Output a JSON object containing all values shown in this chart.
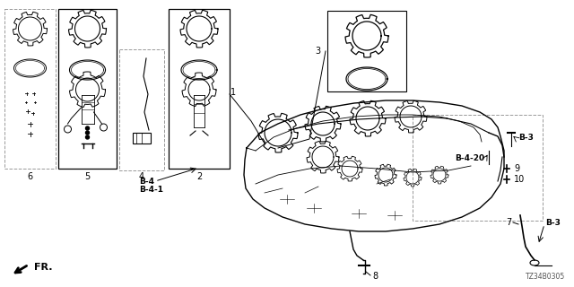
{
  "bg_color": "#ffffff",
  "diagram_code": "TZ34B0305",
  "fr_label": "FR.",
  "line_color": "#000000",
  "text_color": "#000000",
  "gray_color": "#999999",
  "parts": {
    "p1": "1",
    "p2": "2",
    "p3": "3",
    "p4": "4",
    "p5": "5",
    "p6": "6",
    "p7": "7",
    "p8": "8",
    "p9": "9",
    "p10": "10"
  },
  "bolts": {
    "b3": "B-3",
    "b4": "B-4",
    "b41": "B-4-1",
    "b420": "B-4-20"
  }
}
